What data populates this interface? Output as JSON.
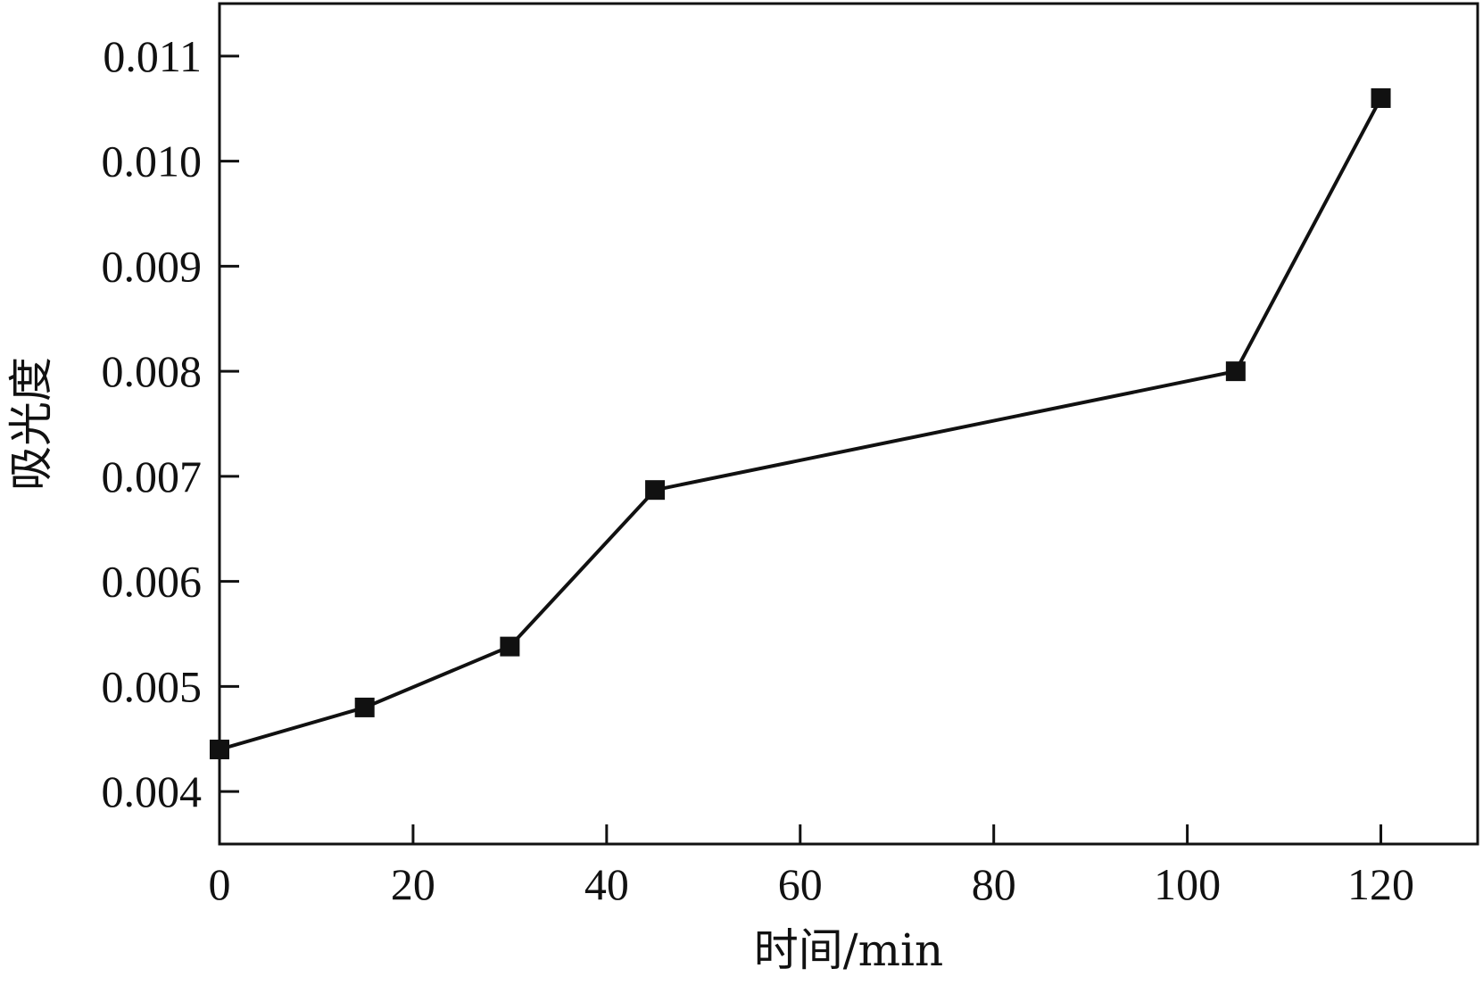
{
  "chart_data": {
    "type": "line",
    "title": "",
    "xlabel": "时间/min",
    "ylabel": "吸光度",
    "x": [
      0,
      15,
      30,
      45,
      105,
      120
    ],
    "series": [
      {
        "values": [
          0.0044,
          0.0048,
          0.00538,
          0.00687,
          0.008,
          0.0106
        ],
        "marker": "square",
        "color": "#111111"
      }
    ],
    "xlim": [
      0,
      130
    ],
    "ylim": [
      0.0035,
      0.0115
    ],
    "xticks": [
      0,
      20,
      40,
      60,
      80,
      100,
      120
    ],
    "xtick_labels": [
      "0",
      "20",
      "40",
      "60",
      "80",
      "100",
      "120"
    ],
    "yticks": [
      0.004,
      0.005,
      0.006,
      0.007,
      0.008,
      0.009,
      0.01,
      0.011
    ],
    "ytick_labels": [
      "0.004",
      "0.005",
      "0.006",
      "0.007",
      "0.008",
      "0.009",
      "0.010",
      "0.011"
    ],
    "grid": false,
    "legend": "none"
  }
}
